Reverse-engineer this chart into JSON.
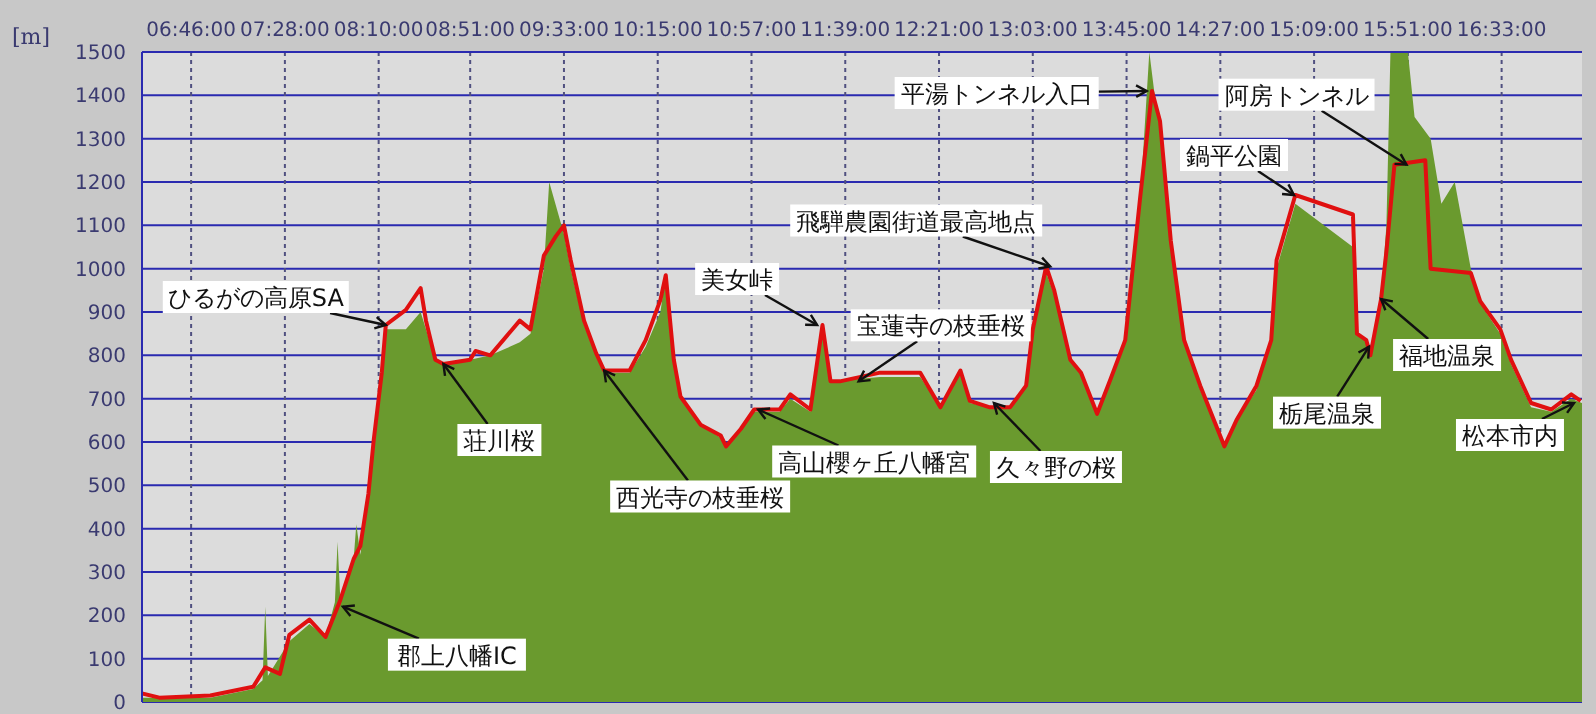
{
  "chart_data": {
    "type": "area",
    "ylabel": "[m]",
    "xlim": [
      6.4,
      17.15
    ],
    "ylim": [
      0,
      1500
    ],
    "xticks": [
      {
        "value": 6.7667,
        "label": "06:46:00"
      },
      {
        "value": 7.4667,
        "label": "07:28:00"
      },
      {
        "value": 8.1667,
        "label": "08:10:00"
      },
      {
        "value": 8.85,
        "label": "08:51:00"
      },
      {
        "value": 9.55,
        "label": "09:33:00"
      },
      {
        "value": 10.25,
        "label": "10:15:00"
      },
      {
        "value": 10.95,
        "label": "10:57:00"
      },
      {
        "value": 11.65,
        "label": "11:39:00"
      },
      {
        "value": 12.35,
        "label": "12:21:00"
      },
      {
        "value": 13.05,
        "label": "13:03:00"
      },
      {
        "value": 13.75,
        "label": "13:45:00"
      },
      {
        "value": 14.45,
        "label": "14:27:00"
      },
      {
        "value": 15.15,
        "label": "15:09:00"
      },
      {
        "value": 15.85,
        "label": "15:51:00"
      },
      {
        "value": 16.55,
        "label": "16:33:00"
      }
    ],
    "yticks": [
      0,
      100,
      200,
      300,
      400,
      500,
      600,
      700,
      800,
      900,
      1000,
      1100,
      1200,
      1300,
      1400,
      1500
    ],
    "grid": true,
    "marker": "none",
    "series": [
      {
        "color": "#6a9a2e",
        "x": [
          6.4,
          6.91,
          7.23,
          7.3,
          7.32,
          7.34,
          7.5,
          7.65,
          7.77,
          7.84,
          7.86,
          7.88,
          7.98,
          8.0,
          8.03,
          8.09,
          8.13,
          8.19,
          8.22,
          8.37,
          8.48,
          8.52,
          8.59,
          8.65,
          8.85,
          9.0,
          9.22,
          9.3,
          9.4,
          9.44,
          9.55,
          9.6,
          9.7,
          9.79,
          9.85,
          10.04,
          10.16,
          10.27,
          10.31,
          10.37,
          10.42,
          10.57,
          10.72,
          10.76,
          10.87,
          10.97,
          11.16,
          11.24,
          11.39,
          11.48,
          11.54,
          11.91,
          12.21,
          12.36,
          12.51,
          12.58,
          12.73,
          12.88,
          13.0,
          13.05,
          13.15,
          13.21,
          13.33,
          13.41,
          13.53,
          13.63,
          13.74,
          13.85,
          13.92,
          13.96,
          14.0,
          14.08,
          14.18,
          14.3,
          14.48,
          14.57,
          14.72,
          14.83,
          14.87,
          15.01,
          15.44,
          15.47,
          15.54,
          15.57,
          15.65,
          15.69,
          15.72,
          15.85,
          15.9,
          16.02,
          16.1,
          16.2,
          16.32,
          16.39,
          16.54,
          16.62,
          16.77,
          16.92,
          17.07,
          17.15
        ],
        "values": [
          10,
          10,
          30,
          50,
          220,
          60,
          140,
          180,
          150,
          230,
          370,
          240,
          330,
          410,
          340,
          480,
          600,
          760,
          860,
          860,
          900,
          860,
          790,
          780,
          790,
          800,
          830,
          850,
          1000,
          1200,
          1080,
          1000,
          870,
          800,
          760,
          760,
          820,
          900,
          985,
          790,
          700,
          640,
          610,
          590,
          630,
          670,
          670,
          700,
          670,
          860,
          740,
          750,
          750,
          680,
          760,
          690,
          680,
          680,
          730,
          850,
          990,
          940,
          790,
          760,
          665,
          740,
          830,
          1150,
          1500,
          1400,
          1330,
          1060,
          830,
          720,
          590,
          650,
          720,
          830,
          1000,
          1150,
          1050,
          850,
          830,
          800,
          930,
          1100,
          1500,
          1500,
          1350,
          1300,
          1150,
          1200,
          1000,
          920,
          850,
          780,
          680,
          670,
          700,
          690
        ]
      },
      {
        "type": "line",
        "color": "#e01010",
        "x": [
          6.4,
          6.53,
          6.91,
          7.23,
          7.32,
          7.43,
          7.5,
          7.65,
          7.77,
          7.88,
          7.98,
          8.03,
          8.09,
          8.13,
          8.19,
          8.22,
          8.37,
          8.48,
          8.52,
          8.59,
          8.65,
          8.85,
          8.89,
          9.0,
          9.22,
          9.3,
          9.4,
          9.49,
          9.55,
          9.6,
          9.7,
          9.79,
          9.85,
          10.04,
          10.16,
          10.27,
          10.31,
          10.37,
          10.42,
          10.57,
          10.72,
          10.76,
          10.87,
          10.97,
          11.16,
          11.24,
          11.39,
          11.48,
          11.54,
          11.61,
          11.91,
          12.21,
          12.36,
          12.51,
          12.58,
          12.73,
          12.88,
          13.0,
          13.05,
          13.15,
          13.21,
          13.33,
          13.41,
          13.53,
          13.63,
          13.74,
          13.85,
          13.94,
          14.0,
          14.08,
          14.18,
          14.3,
          14.48,
          14.57,
          14.72,
          14.83,
          14.87,
          15.01,
          15.44,
          15.47,
          15.54,
          15.57,
          15.65,
          15.69,
          15.75,
          15.98,
          16.02,
          16.32,
          16.39,
          16.54,
          16.62,
          16.77,
          16.92,
          17.07,
          17.14
        ],
        "values": [
          20,
          10,
          15,
          35,
          80,
          65,
          155,
          190,
          150,
          235,
          330,
          360,
          480,
          605,
          760,
          870,
          905,
          955,
          880,
          790,
          780,
          790,
          810,
          800,
          880,
          860,
          1030,
          1075,
          1100,
          1020,
          880,
          805,
          765,
          765,
          835,
          928,
          985,
          790,
          705,
          640,
          615,
          590,
          630,
          675,
          675,
          710,
          675,
          870,
          740,
          740,
          760,
          760,
          680,
          765,
          695,
          680,
          680,
          730,
          860,
          1005,
          950,
          790,
          760,
          665,
          745,
          835,
          1160,
          1410,
          1340,
          1065,
          835,
          730,
          590,
          650,
          730,
          835,
          1020,
          1170,
          1125,
          850,
          835,
          800,
          930,
          1040,
          1240,
          1250,
          1000,
          990,
          925,
          860,
          790,
          690,
          675,
          710,
          695
        ]
      }
    ],
    "annotations": [
      {
        "text": "ひるがの高原SA",
        "x": 8.22,
        "y": 870
      },
      {
        "text": "荘川桜",
        "x": 8.65,
        "y": 780
      },
      {
        "text": "西光寺の枝垂桜",
        "x": 9.85,
        "y": 765
      },
      {
        "text": "美女峠",
        "x": 11.44,
        "y": 870
      },
      {
        "text": "宝蓮寺の枝垂桜",
        "x": 11.75,
        "y": 740
      },
      {
        "text": "高山櫻ヶ丘八幡宮",
        "x": 11.0,
        "y": 675
      },
      {
        "text": "久々野の桜",
        "x": 12.76,
        "y": 690
      },
      {
        "text": "飛騨農園街道最高地点",
        "x": 13.18,
        "y": 1005
      },
      {
        "text": "平湯トンネル入口",
        "x": 13.9,
        "y": 1410
      },
      {
        "text": "鍋平公園",
        "x": 15.0,
        "y": 1170
      },
      {
        "text": "阿房トンネル",
        "x": 15.84,
        "y": 1240
      },
      {
        "text": "福地温泉",
        "x": 15.65,
        "y": 930
      },
      {
        "text": "栃尾温泉",
        "x": 15.56,
        "y": 820
      },
      {
        "text": "松本市内",
        "x": 17.09,
        "y": 690
      },
      {
        "text": "郡上八幡IC",
        "x": 7.9,
        "y": 220
      }
    ]
  }
}
